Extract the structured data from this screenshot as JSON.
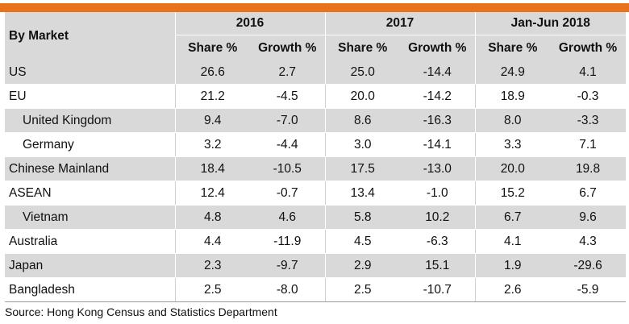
{
  "header": {
    "market_label": "By Market",
    "periods": [
      "2016",
      "2017",
      "Jan-Jun 2018"
    ],
    "sub_headers": [
      "Share %",
      "Growth %",
      "Share %",
      "Growth %",
      "Share %",
      "Growth %"
    ]
  },
  "rows": [
    {
      "name": "US",
      "values": [
        "26.6",
        "2.7",
        "25.0",
        "-14.4",
        "24.9",
        "4.1"
      ]
    },
    {
      "name": "EU",
      "values": [
        "21.2",
        "-4.5",
        "20.0",
        "-14.2",
        "18.9",
        "-0.3"
      ]
    },
    {
      "name": "United Kingdom",
      "values": [
        "9.4",
        "-7.0",
        "8.6",
        "-16.3",
        "8.0",
        "-3.3"
      ]
    },
    {
      "name": "Germany",
      "values": [
        "3.2",
        "-4.4",
        "3.0",
        "-14.1",
        "3.3",
        "7.1"
      ]
    },
    {
      "name": "Chinese Mainland",
      "values": [
        "18.4",
        "-10.5",
        "17.5",
        "-13.0",
        "20.0",
        "19.8"
      ]
    },
    {
      "name": "ASEAN",
      "values": [
        "12.4",
        "-0.7",
        "13.4",
        "-1.0",
        "15.2",
        "6.7"
      ]
    },
    {
      "name": "Vietnam",
      "values": [
        "4.8",
        "4.6",
        "5.8",
        "10.2",
        "6.7",
        "9.6"
      ]
    },
    {
      "name": "Australia",
      "values": [
        "4.4",
        "-11.9",
        "4.5",
        "-6.3",
        "4.1",
        "4.3"
      ]
    },
    {
      "name": "Japan",
      "values": [
        "2.3",
        "-9.7",
        "2.9",
        "15.1",
        "1.9",
        "-29.6"
      ]
    },
    {
      "name": "Bangladesh",
      "values": [
        "2.5",
        "-8.0",
        "2.5",
        "-10.7",
        "2.6",
        "-5.9"
      ]
    }
  ],
  "footer": {
    "source": "Source: Hong Kong Census and Statistics Department"
  },
  "colors": {
    "accent_bar": "#e8731a",
    "header_bg": "#d9d9d9",
    "shaded_row_bg": "#d9d9d9"
  }
}
